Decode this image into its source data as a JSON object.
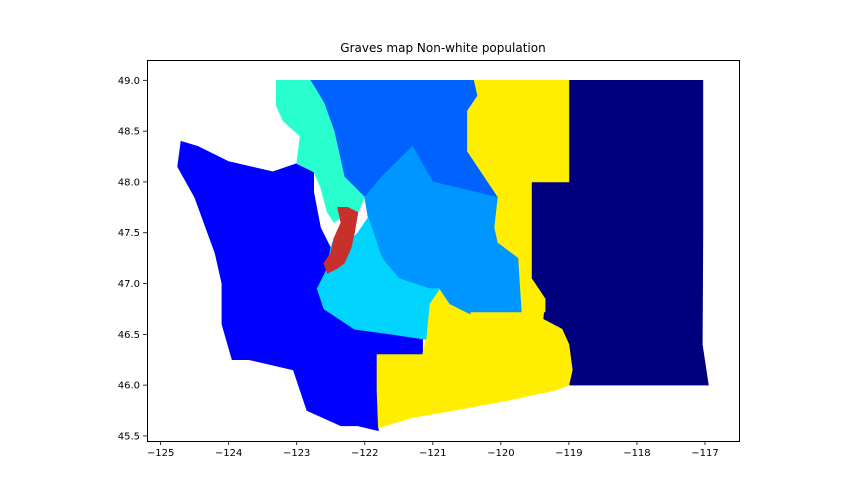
{
  "figure": {
    "title": "Graves map Non-white population"
  },
  "chart_data": {
    "type": "choropleth-map",
    "title": "Graves map Non-white population",
    "xlabel": "",
    "ylabel": "",
    "xlim": [
      -125.2,
      -116.5
    ],
    "ylim": [
      45.45,
      49.2
    ],
    "x_ticks": [
      -125,
      -124,
      -123,
      -122,
      -121,
      -120,
      -119,
      -118,
      -117
    ],
    "y_ticks": [
      45.5,
      46.0,
      46.5,
      47.0,
      47.5,
      48.0,
      48.5,
      49.0
    ],
    "x_tick_labels": [
      "−125",
      "−124",
      "−123",
      "−122",
      "−121",
      "−120",
      "−119",
      "−118",
      "−117"
    ],
    "y_tick_labels": [
      "45.5",
      "46.0",
      "46.5",
      "47.0",
      "47.5",
      "48.0",
      "48.5",
      "49.0"
    ],
    "grid": false,
    "legend": "none",
    "colormap": "jet",
    "districts": [
      {
        "id": "dark-navy-east",
        "color": "#00007f",
        "geometry": [
          [
            -119.0,
            49.0
          ],
          [
            -117.03,
            49.0
          ],
          [
            -117.03,
            47.5
          ],
          [
            -117.04,
            46.4
          ],
          [
            -116.95,
            46.0
          ],
          [
            -118.0,
            46.0
          ],
          [
            -118.98,
            46.0
          ],
          [
            -119.2,
            46.1
          ],
          [
            -119.35,
            46.5
          ],
          [
            -119.45,
            46.95
          ],
          [
            -119.55,
            47.05
          ],
          [
            -119.55,
            48.0
          ],
          [
            -119.0,
            48.0
          ],
          [
            -119.0,
            48.6
          ]
        ]
      },
      {
        "id": "blue-west",
        "color": "#0000ff",
        "geometry": [
          [
            -124.7,
            48.4
          ],
          [
            -124.45,
            48.35
          ],
          [
            -124.0,
            48.2
          ],
          [
            -123.35,
            48.1
          ],
          [
            -123.0,
            48.18
          ],
          [
            -122.75,
            48.1
          ],
          [
            -122.75,
            47.9
          ],
          [
            -122.65,
            47.55
          ],
          [
            -122.5,
            47.35
          ],
          [
            -122.55,
            47.15
          ],
          [
            -122.7,
            46.95
          ],
          [
            -122.6,
            46.75
          ],
          [
            -122.15,
            46.55
          ],
          [
            -121.6,
            46.5
          ],
          [
            -121.15,
            46.5
          ],
          [
            -121.15,
            46.3
          ],
          [
            -121.8,
            46.3
          ],
          [
            -121.82,
            45.95
          ],
          [
            -121.8,
            45.55
          ],
          [
            -122.1,
            45.6
          ],
          [
            -122.35,
            45.6
          ],
          [
            -122.85,
            45.75
          ],
          [
            -123.05,
            46.15
          ],
          [
            -123.7,
            46.25
          ],
          [
            -123.95,
            46.25
          ],
          [
            -124.1,
            46.6
          ],
          [
            -124.1,
            47.0
          ],
          [
            -124.2,
            47.3
          ],
          [
            -124.5,
            47.85
          ],
          [
            -124.75,
            48.15
          ]
        ]
      },
      {
        "id": "yellow-south",
        "color": "#ffee00",
        "geometry": [
          [
            -121.82,
            46.3
          ],
          [
            -121.15,
            46.3
          ],
          [
            -121.1,
            46.45
          ],
          [
            -121.05,
            46.8
          ],
          [
            -120.9,
            46.95
          ],
          [
            -120.75,
            46.8
          ],
          [
            -120.45,
            46.7
          ],
          [
            -120.45,
            46.85
          ],
          [
            -119.35,
            46.85
          ],
          [
            -119.38,
            46.65
          ],
          [
            -119.1,
            46.55
          ],
          [
            -119.0,
            46.4
          ],
          [
            -118.95,
            46.15
          ],
          [
            -119.0,
            46.0
          ],
          [
            -119.2,
            45.95
          ],
          [
            -119.9,
            45.85
          ],
          [
            -120.7,
            45.75
          ],
          [
            -121.3,
            45.68
          ],
          [
            -121.8,
            45.58
          ],
          [
            -121.82,
            45.95
          ]
        ]
      },
      {
        "id": "yellow-central",
        "color": "#ffee00",
        "geometry": [
          [
            -120.4,
            49.0
          ],
          [
            -119.0,
            49.0
          ],
          [
            -119.0,
            48.6
          ],
          [
            -119.0,
            48.0
          ],
          [
            -119.55,
            48.0
          ],
          [
            -119.55,
            47.05
          ],
          [
            -119.45,
            46.95
          ],
          [
            -119.35,
            46.85
          ],
          [
            -119.35,
            46.72
          ],
          [
            -119.7,
            46.72
          ],
          [
            -119.75,
            47.25
          ],
          [
            -120.05,
            47.4
          ],
          [
            -120.1,
            47.55
          ],
          [
            -120.05,
            47.85
          ],
          [
            -120.5,
            48.3
          ],
          [
            -120.5,
            48.7
          ],
          [
            -120.35,
            48.85
          ]
        ]
      },
      {
        "id": "azure-north",
        "color": "#0062ff",
        "geometry": [
          [
            -123.3,
            49.0
          ],
          [
            -120.4,
            49.0
          ],
          [
            -120.35,
            48.85
          ],
          [
            -120.5,
            48.7
          ],
          [
            -120.5,
            48.3
          ],
          [
            -120.05,
            47.85
          ],
          [
            -121.0,
            48.0
          ],
          [
            -121.3,
            48.35
          ],
          [
            -121.45,
            48.25
          ],
          [
            -121.75,
            48.05
          ],
          [
            -122.0,
            47.85
          ],
          [
            -122.3,
            48.05
          ],
          [
            -122.45,
            48.5
          ],
          [
            -122.6,
            48.78
          ],
          [
            -122.8,
            49.0
          ],
          [
            -123.0,
            49.0
          ]
        ]
      },
      {
        "id": "sky-central",
        "color": "#0096ff",
        "geometry": [
          [
            -121.45,
            48.25
          ],
          [
            -121.3,
            48.35
          ],
          [
            -121.0,
            48.0
          ],
          [
            -120.05,
            47.85
          ],
          [
            -120.1,
            47.55
          ],
          [
            -120.05,
            47.4
          ],
          [
            -119.75,
            47.25
          ],
          [
            -119.7,
            46.72
          ],
          [
            -120.45,
            46.72
          ],
          [
            -120.45,
            46.7
          ],
          [
            -120.75,
            46.8
          ],
          [
            -120.9,
            46.95
          ],
          [
            -121.05,
            46.95
          ],
          [
            -121.5,
            47.05
          ],
          [
            -121.75,
            47.25
          ],
          [
            -121.85,
            47.45
          ],
          [
            -121.95,
            47.65
          ],
          [
            -122.0,
            47.85
          ],
          [
            -121.75,
            48.05
          ]
        ]
      },
      {
        "id": "aqua-south-king",
        "color": "#00d4ff",
        "geometry": [
          [
            -122.45,
            47.45
          ],
          [
            -122.25,
            47.4
          ],
          [
            -122.1,
            47.5
          ],
          [
            -121.95,
            47.65
          ],
          [
            -121.85,
            47.45
          ],
          [
            -121.75,
            47.25
          ],
          [
            -121.5,
            47.05
          ],
          [
            -121.05,
            46.95
          ],
          [
            -120.9,
            46.95
          ],
          [
            -121.05,
            46.8
          ],
          [
            -121.1,
            46.45
          ],
          [
            -121.6,
            46.5
          ],
          [
            -122.15,
            46.55
          ],
          [
            -122.6,
            46.75
          ],
          [
            -122.7,
            46.95
          ],
          [
            -122.55,
            47.15
          ],
          [
            -122.5,
            47.35
          ]
        ]
      },
      {
        "id": "turquoise-northwest",
        "color": "#29ffce",
        "geometry": [
          [
            -123.3,
            49.0
          ],
          [
            -122.8,
            49.0
          ],
          [
            -122.6,
            48.78
          ],
          [
            -122.45,
            48.5
          ],
          [
            -122.3,
            48.05
          ],
          [
            -122.0,
            47.85
          ],
          [
            -122.1,
            47.7
          ],
          [
            -122.25,
            47.6
          ],
          [
            -122.35,
            47.65
          ],
          [
            -122.45,
            47.6
          ],
          [
            -122.55,
            47.7
          ],
          [
            -122.65,
            47.95
          ],
          [
            -122.75,
            48.1
          ],
          [
            -123.0,
            48.18
          ],
          [
            -122.95,
            48.45
          ],
          [
            -123.2,
            48.6
          ],
          [
            -123.3,
            48.75
          ]
        ]
      },
      {
        "id": "red-seattle",
        "color": "#c8302b",
        "geometry": [
          [
            -122.4,
            47.75
          ],
          [
            -122.25,
            47.75
          ],
          [
            -122.1,
            47.7
          ],
          [
            -122.15,
            47.5
          ],
          [
            -122.2,
            47.35
          ],
          [
            -122.3,
            47.2
          ],
          [
            -122.4,
            47.15
          ],
          [
            -122.55,
            47.1
          ],
          [
            -122.6,
            47.2
          ],
          [
            -122.5,
            47.3
          ],
          [
            -122.45,
            47.45
          ],
          [
            -122.35,
            47.6
          ]
        ]
      }
    ]
  }
}
